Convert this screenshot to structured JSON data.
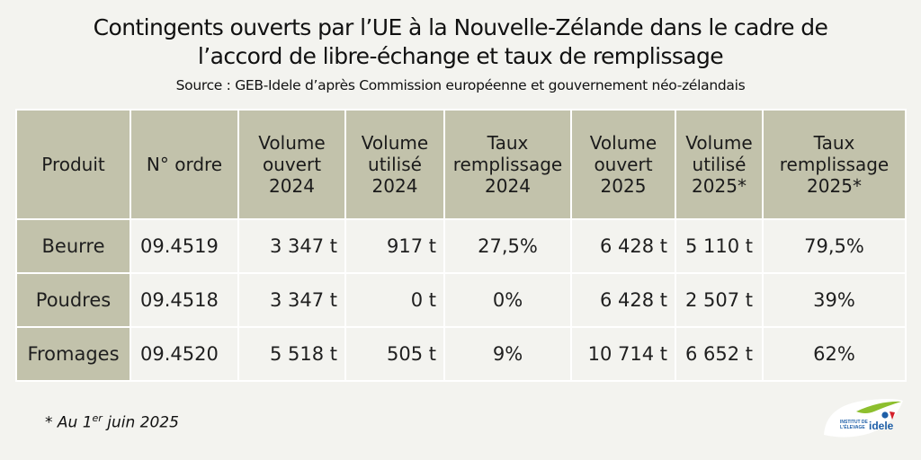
{
  "title_line1": "Contingents ouverts par l’UE à la Nouvelle-Zélande dans le cadre de",
  "title_line2": "l’accord de libre-échange et taux de remplissage",
  "source": "Source : GEB-Idele d’après Commission européenne et gouvernement néo-zélandais",
  "chart_data": {
    "type": "table",
    "columns": [
      [
        "Produit"
      ],
      [
        "N° ordre"
      ],
      [
        "Volume",
        "ouvert",
        "2024"
      ],
      [
        "Volume",
        "utilisé",
        "2024"
      ],
      [
        "Taux",
        "remplissage",
        "2024"
      ],
      [
        "Volume",
        "ouvert",
        "2025"
      ],
      [
        "Volume",
        "utilisé",
        "2025*"
      ],
      [
        "Taux",
        "remplissage",
        "2025*"
      ]
    ],
    "rows": [
      [
        "Beurre",
        "09.4519",
        "3 347 t",
        "917 t",
        "27,5%",
        "6 428 t",
        "5 110 t",
        "79,5%"
      ],
      [
        "Poudres",
        "09.4518",
        "3 347 t",
        "0 t",
        "0%",
        "6 428 t",
        "2 507 t",
        "39%"
      ],
      [
        "Fromages",
        "09.4520",
        "5 518 t",
        "505 t",
        "9%",
        "10 714 t",
        "6 652 t",
        "62%"
      ]
    ]
  },
  "footnote": {
    "prefix": "* Au 1",
    "sup": "er",
    "suffix": " juin 2025"
  },
  "logo": {
    "line1": "INSTITUT DE",
    "line2": "L'ÉLEVAGE",
    "brand": "idele",
    "colors": {
      "green": "#8dbf2e",
      "blue": "#1f5fa8",
      "red": "#d4202a"
    }
  }
}
